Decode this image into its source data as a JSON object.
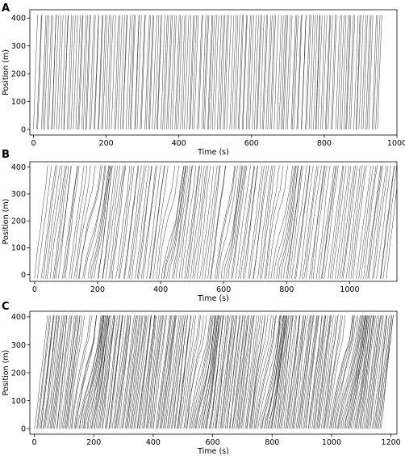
{
  "chart_data": [
    {
      "panel": "A",
      "type": "line",
      "title": "",
      "xlabel": "Time (s)",
      "ylabel": "Position (m)",
      "xlim": [
        -10,
        1000
      ],
      "ylim": [
        -20,
        430
      ],
      "xticks": [
        0,
        200,
        400,
        600,
        800,
        1000
      ],
      "yticks": [
        0,
        100,
        200,
        300,
        400
      ],
      "trajectories": {
        "count": 170,
        "t_start": [
          0,
          950
        ],
        "position_range": [
          0,
          410
        ],
        "pattern": "near-vertical free-flow lines, travel time about 8 s"
      }
    },
    {
      "panel": "B",
      "type": "line",
      "title": "",
      "xlabel": "Time (s)",
      "ylabel": "Position (m)",
      "xlim": [
        -15,
        1150
      ],
      "ylim": [
        -25,
        420
      ],
      "xticks": [
        0,
        200,
        400,
        600,
        800,
        1000
      ],
      "yticks": [
        0,
        100,
        200,
        300,
        400
      ],
      "trajectories": {
        "count": 150,
        "t_start": [
          0,
          1120
        ],
        "position_range": [
          -15,
          405
        ],
        "pattern": "slanted lines with stop-and-go waves near 180 s, 430 s, 610 s, 780 s"
      }
    },
    {
      "panel": "C",
      "type": "line",
      "title": "",
      "xlabel": "Time (s)",
      "ylabel": "Position (m)",
      "xlim": [
        -15,
        1220
      ],
      "ylim": [
        -20,
        420
      ],
      "xticks": [
        0,
        200,
        400,
        600,
        800,
        1000,
        1200
      ],
      "yticks": [
        0,
        100,
        200,
        300,
        400
      ],
      "trajectories": {
        "count": 260,
        "t_start": [
          0,
          1170
        ],
        "position_range": [
          0,
          405
        ],
        "pattern": "dense slanted lines with congestion waves near 180 s, 560 s, 780 s, 1050 s"
      }
    }
  ]
}
